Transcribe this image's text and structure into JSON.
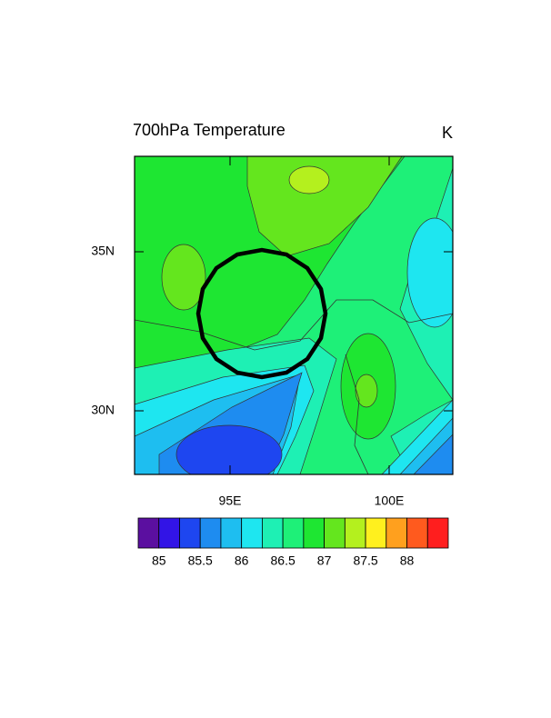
{
  "map": {
    "title": "700hPa Temperature",
    "units": "K",
    "xlim": [
      92,
      102
    ],
    "ylim": [
      28,
      38
    ],
    "xticks": [
      {
        "value": 95,
        "label": "95E"
      },
      {
        "value": 100,
        "label": "100E"
      }
    ],
    "yticks": [
      {
        "value": 30,
        "label": "30N"
      },
      {
        "value": 35,
        "label": "35N"
      }
    ],
    "colorbar": {
      "range": [
        84.75,
        88.5
      ],
      "ticks": [
        85,
        85.5,
        86,
        86.5,
        87,
        87.5,
        88
      ],
      "colors": [
        "#5b0fa0",
        "#3214e6",
        "#1e46f0",
        "#1e8cf0",
        "#1ebef0",
        "#1ee6f0",
        "#1ef0b4",
        "#1ef078",
        "#1ee632",
        "#64e61e",
        "#b4f01e",
        "#fff01e",
        "#ffa01e",
        "#ff5a1e",
        "#ff1e1e"
      ]
    }
  }
}
